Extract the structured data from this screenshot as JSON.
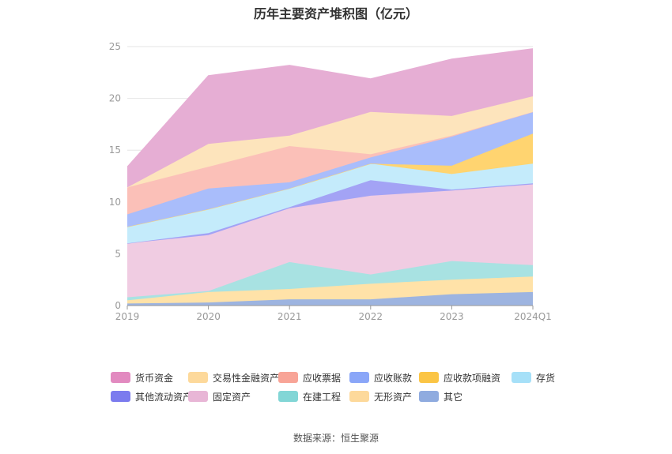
{
  "chart_data": {
    "type": "area",
    "stacked": true,
    "title": "历年主要资产堆积图（亿元）",
    "source": "数据来源：恒生聚源",
    "categories": [
      "2019",
      "2020",
      "2021",
      "2022",
      "2023",
      "2024Q1"
    ],
    "ylim": [
      0,
      25
    ],
    "yticks": [
      0,
      5,
      10,
      15,
      20,
      25
    ],
    "grid": true,
    "legend_position": "bottom",
    "series": [
      {
        "name": "其它",
        "color": "#9db4e0",
        "values": [
          0.2,
          0.3,
          0.6,
          0.6,
          1.1,
          1.3
        ]
      },
      {
        "name": "无形资产",
        "color": "#ffe2a8",
        "values": [
          0.3,
          1.0,
          1.0,
          1.5,
          1.4,
          1.5
        ]
      },
      {
        "name": "在建工程",
        "color": "#a8e2e2",
        "values": [
          0.3,
          0.1,
          2.6,
          0.9,
          1.8,
          1.1
        ]
      },
      {
        "name": "固定资产",
        "color": "#f0cce2",
        "values": [
          5.2,
          5.4,
          5.2,
          7.6,
          6.8,
          7.8
        ]
      },
      {
        "name": "其他流动资产",
        "color": "#a3a3f5",
        "values": [
          0.0,
          0.2,
          0.1,
          1.5,
          0.1,
          0.1
        ]
      },
      {
        "name": "存货",
        "color": "#c4ebfb",
        "values": [
          1.6,
          2.3,
          1.8,
          1.6,
          1.5,
          1.9
        ]
      },
      {
        "name": "应收款项融资",
        "color": "#ffd470",
        "values": [
          0.0,
          0.0,
          0.0,
          0.0,
          0.8,
          2.9
        ]
      },
      {
        "name": "应收账款",
        "color": "#a9bdfb",
        "values": [
          1.2,
          2.0,
          0.6,
          0.6,
          2.8,
          2.1
        ]
      },
      {
        "name": "应收票据",
        "color": "#fbc0b8",
        "values": [
          2.6,
          2.1,
          3.5,
          0.3,
          0.1,
          0.0
        ]
      },
      {
        "name": "交易性金融资产",
        "color": "#fde4bc",
        "values": [
          0.0,
          2.2,
          1.0,
          4.1,
          1.9,
          1.5
        ]
      },
      {
        "name": "货币资金",
        "color": "#e6aed4",
        "values": [
          2.0,
          6.6,
          6.8,
          3.2,
          5.5,
          4.6
        ]
      }
    ],
    "legend": [
      {
        "name": "货币资金",
        "color": "#e28ac0"
      },
      {
        "name": "交易性金融资产",
        "color": "#fdd99b"
      },
      {
        "name": "应收票据",
        "color": "#f8a497"
      },
      {
        "name": "应收账款",
        "color": "#8aa6f8"
      },
      {
        "name": "应收款项融资",
        "color": "#fbc545"
      },
      {
        "name": "存货",
        "color": "#a6e0f8"
      },
      {
        "name": "其他流动资产",
        "color": "#7b7bee"
      },
      {
        "name": "固定资产",
        "color": "#e8b6d6"
      },
      {
        "name": "在建工程",
        "color": "#82d6d6"
      },
      {
        "name": "无形资产",
        "color": "#fdd99b"
      },
      {
        "name": "其它",
        "color": "#8fabdf"
      }
    ]
  }
}
